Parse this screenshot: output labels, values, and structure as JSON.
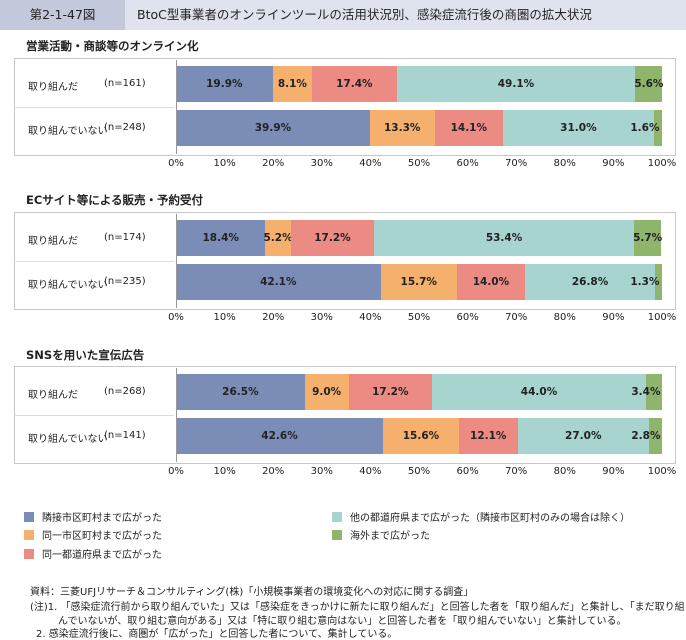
{
  "header": {
    "figure_no": "第2-1-47図",
    "title": "BtoC型事業者のオンラインツールの活用状況別、感染症流行後の商圏の拡大状況"
  },
  "chart_data": [
    {
      "type": "bar",
      "title": "営業活動・商談等のオンライン化",
      "categories": [
        "取り組んだ",
        "取り組んでいない"
      ],
      "n": [
        "(n=161)",
        "(n=248)"
      ],
      "series": [
        {
          "name": "隣接市区町村まで広がった",
          "values": [
            19.9,
            39.9
          ]
        },
        {
          "name": "同一市区町村まで広がった",
          "values": [
            8.1,
            13.3
          ]
        },
        {
          "name": "同一都道府県まで広がった",
          "values": [
            17.4,
            14.1
          ]
        },
        {
          "name": "他の都道府県まで広がった（隣接市区町村のみの場合は除く）",
          "values": [
            49.1,
            31.0
          ]
        },
        {
          "name": "海外まで広がった",
          "values": [
            5.6,
            1.6
          ]
        }
      ],
      "value_labels": [
        [
          "19.9%",
          "8.1%",
          "17.4%",
          "49.1%",
          "5.6%"
        ],
        [
          "39.9%",
          "13.3%",
          "14.1%",
          "31.0%",
          "1.6%"
        ]
      ],
      "xlim": [
        0,
        100
      ],
      "ticks": [
        "0%",
        "10%",
        "20%",
        "30%",
        "40%",
        "50%",
        "60%",
        "70%",
        "80%",
        "90%",
        "100%"
      ]
    },
    {
      "type": "bar",
      "title": "ECサイト等による販売・予約受付",
      "categories": [
        "取り組んだ",
        "取り組んでいない"
      ],
      "n": [
        "(n=174)",
        "(n=235)"
      ],
      "series": [
        {
          "name": "隣接市区町村まで広がった",
          "values": [
            18.4,
            42.1
          ]
        },
        {
          "name": "同一市区町村まで広がった",
          "values": [
            5.2,
            15.7
          ]
        },
        {
          "name": "同一都道府県まで広がった",
          "values": [
            17.2,
            14.0
          ]
        },
        {
          "name": "他の都道府県まで広がった（隣接市区町村のみの場合は除く）",
          "values": [
            53.4,
            26.8
          ]
        },
        {
          "name": "海外まで広がった",
          "values": [
            5.7,
            1.3
          ]
        }
      ],
      "value_labels": [
        [
          "18.4%",
          "5.2%",
          "17.2%",
          "53.4%",
          "5.7%"
        ],
        [
          "42.1%",
          "15.7%",
          "14.0%",
          "26.8%",
          "1.3%"
        ]
      ],
      "xlim": [
        0,
        100
      ],
      "ticks": [
        "0%",
        "10%",
        "20%",
        "30%",
        "40%",
        "50%",
        "60%",
        "70%",
        "80%",
        "90%",
        "100%"
      ]
    },
    {
      "type": "bar",
      "title": "SNSを用いた宣伝広告",
      "categories": [
        "取り組んだ",
        "取り組んでいない"
      ],
      "n": [
        "(n=268)",
        "(n=141)"
      ],
      "series": [
        {
          "name": "隣接市区町村まで広がった",
          "values": [
            26.5,
            42.6
          ]
        },
        {
          "name": "同一市区町村まで広がった",
          "values": [
            9.0,
            15.6
          ]
        },
        {
          "name": "同一都道府県まで広がった",
          "values": [
            17.2,
            12.1
          ]
        },
        {
          "name": "他の都道府県まで広がった（隣接市区町村のみの場合は除く）",
          "values": [
            44.0,
            27.0
          ]
        },
        {
          "name": "海外まで広がった",
          "values": [
            3.4,
            2.8
          ]
        }
      ],
      "value_labels": [
        [
          "26.5%",
          "9.0%",
          "17.2%",
          "44.0%",
          "3.4%"
        ],
        [
          "42.6%",
          "15.6%",
          "12.1%",
          "27.0%",
          "2.8%"
        ]
      ],
      "xlim": [
        0,
        100
      ],
      "ticks": [
        "0%",
        "10%",
        "20%",
        "30%",
        "40%",
        "50%",
        "60%",
        "70%",
        "80%",
        "90%",
        "100%"
      ]
    }
  ],
  "colors": [
    "#7b8db7",
    "#f5b06e",
    "#ec8b83",
    "#a7d4cf",
    "#8fb56d"
  ],
  "legend": [
    "隣接市区町村まで広がった",
    "同一市区町村まで広がった",
    "同一都道府県まで広がった",
    "他の都道府県まで広がった（隣接市区町村のみの場合は除く）",
    "海外まで広がった"
  ],
  "notes": [
    "資料：三菱UFJリサーチ＆コンサルティング(株)「小規模事業者の環境変化への対応に関する調査」",
    "(注)1. 「感染症流行前から取り組んでいた」又は「感染症をきっかけに新たに取り組んだ」と回答した者を「取り組んだ」と集計し、「まだ取り組",
    "んでいないが、取り組む意向がある」又は「特に取り組む意向はない」と回答した者を「取り組んでいない」と集計している。",
    "2. 感染症流行後に、商圏が「広がった」と回答した者について、集計している。"
  ]
}
